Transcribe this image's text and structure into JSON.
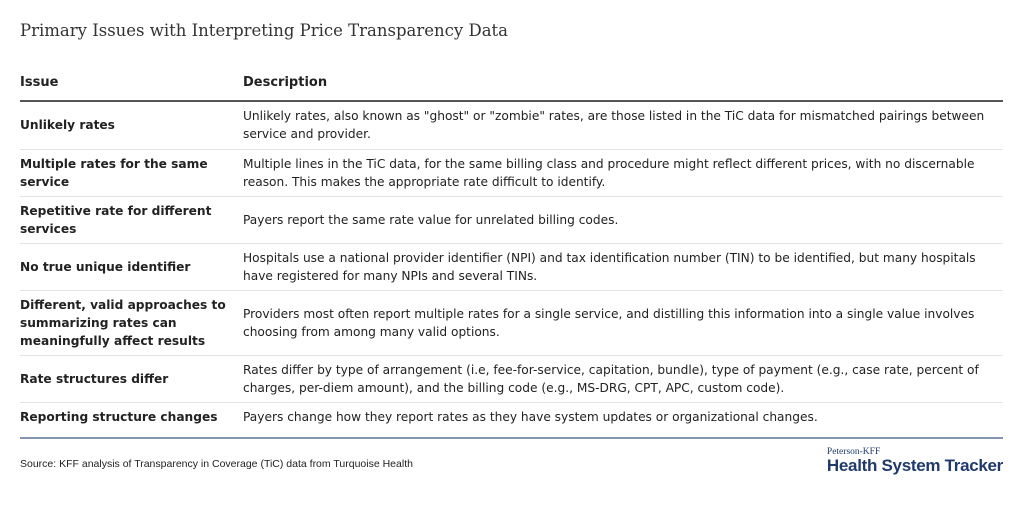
{
  "title": "Primary Issues with Interpreting Price Transparency Data",
  "table": {
    "headers": [
      "Issue",
      "Description"
    ],
    "rows": [
      {
        "issue": "Unlikely rates",
        "description": "Unlikely rates, also known as \"ghost\" or \"zombie\" rates, are those listed in the TiC data for mismatched pairings between service and provider."
      },
      {
        "issue": "Multiple rates for the same service",
        "description": "Multiple lines in the TiC data, for the same billing class and procedure might reflect different prices, with no discernable reason. This makes the appropriate rate difficult to identify."
      },
      {
        "issue": "Repetitive rate for different services",
        "description": "Payers report the same rate value for unrelated billing codes."
      },
      {
        "issue": "No true unique identifier",
        "description": "Hospitals use a national provider identifier (NPI) and tax identification number (TIN) to be identified, but many hospitals have registered for many NPIs and several TINs."
      },
      {
        "issue": "Different, valid approaches to summarizing rates can meaningfully affect results",
        "description": "Providers most often report multiple rates for a single service, and distilling this information into a single value involves choosing from among many valid options."
      },
      {
        "issue": "Rate structures differ",
        "description": "Rates differ by type of arrangement (i.e, fee-for-service, capitation, bundle), type of payment (e.g., case rate, percent of charges, per-diem amount), and the billing code (e.g., MS-DRG, CPT, APC, custom code)."
      },
      {
        "issue": "Reporting structure changes",
        "description": "Payers change how they report rates as they have system updates or organizational changes."
      }
    ]
  },
  "footer": {
    "source": "Source: KFF analysis of Transparency in Coverage (TiC) data from Turquoise Health",
    "logo_top": "Peterson-KFF",
    "logo_main": "Health System Tracker"
  }
}
